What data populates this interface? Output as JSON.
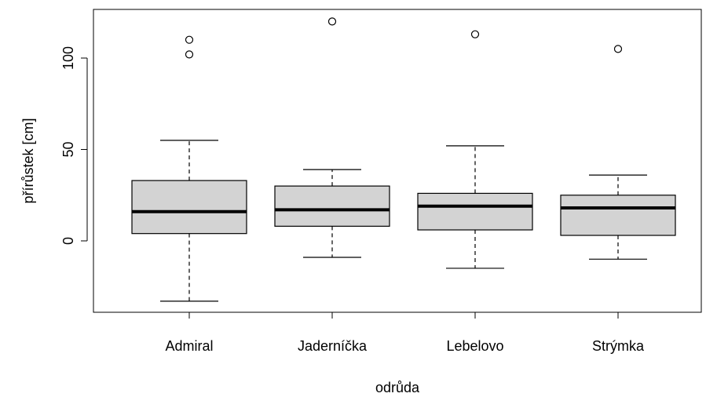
{
  "chart_data": {
    "type": "boxplot",
    "title": "",
    "xlabel": "odrůda",
    "ylabel": "přírůstek [cm]",
    "ylim": [
      -40,
      125
    ],
    "yticks": [
      0,
      50,
      100
    ],
    "grid": false,
    "box_fill": "#d3d3d3",
    "categories": [
      "Admiral",
      "Jaderníčka",
      "Lebelovo",
      "Strýmka"
    ],
    "boxes": [
      {
        "name": "Admiral",
        "whisker_low": -33,
        "q1": 4,
        "median": 16,
        "q3": 33,
        "whisker_high": 55,
        "outliers": [
          102,
          110
        ]
      },
      {
        "name": "Jaderníčka",
        "whisker_low": -9,
        "q1": 8,
        "median": 17,
        "q3": 30,
        "whisker_high": 39,
        "outliers": [
          120
        ]
      },
      {
        "name": "Lebelovo",
        "whisker_low": -15,
        "q1": 6,
        "median": 19,
        "q3": 26,
        "whisker_high": 52,
        "outliers": [
          113
        ]
      },
      {
        "name": "Strýmka",
        "whisker_low": -10,
        "q1": 3,
        "median": 18,
        "q3": 25,
        "whisker_high": 36,
        "outliers": [
          105
        ]
      }
    ]
  }
}
